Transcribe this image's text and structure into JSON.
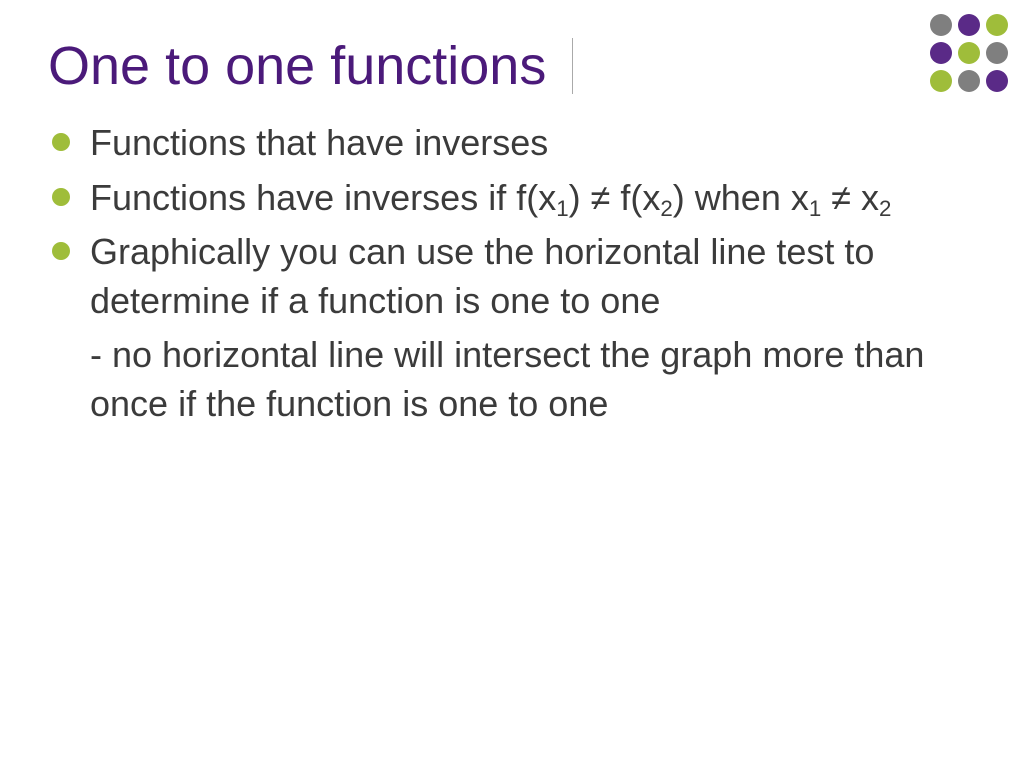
{
  "title": {
    "text": "One to one functions",
    "color": "#4b1a7a",
    "fontsize": 54
  },
  "body": {
    "text_color": "#3b3b3b",
    "fontsize": 36,
    "bullet_color": "#9fbd3a",
    "items": [
      {
        "html": "Functions that have inverses"
      },
      {
        "html": "Functions have inverses if f(x<sub>1</sub>) ≠ f(x<sub>2</sub>) when x<sub>1</sub> ≠ x<sub>2</sub>"
      },
      {
        "html": "Graphically you can use the horizontal line test to determine if a function is one to one"
      }
    ],
    "subtext": {
      "html": "- no horizontal line will intersect the graph more than once if the function is one to one"
    }
  },
  "decor": {
    "circles": [
      {
        "color": "#7f7f7f"
      },
      {
        "color": "#5a2a87"
      },
      {
        "color": "#9fbd3a"
      },
      {
        "color": "#5a2a87"
      },
      {
        "color": "#9fbd3a"
      },
      {
        "color": "#7f7f7f"
      },
      {
        "color": "#9fbd3a"
      },
      {
        "color": "#7f7f7f"
      },
      {
        "color": "#5a2a87"
      }
    ]
  },
  "background_color": "#ffffff"
}
